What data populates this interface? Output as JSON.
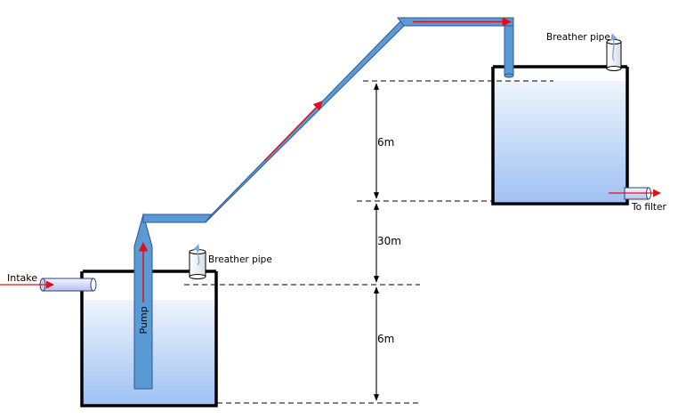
{
  "labels": {
    "intake": "Intake",
    "pump": "Pump",
    "breather_lower": "Breather pipe",
    "breather_upper": "Breather pipe",
    "to_filter": "To filter",
    "dim_upper": "6m",
    "dim_middle": "30m",
    "dim_lower": "6m"
  },
  "colors": {
    "pipe_fill": "#5b9bd5",
    "pipe_stroke": "#2f5597",
    "water_top": "#eaf1fb",
    "water_bottom": "#9fc2f3",
    "tank_wall": "#000000",
    "flow_arrow": "#e0101a",
    "breather_arrow": "#7aaad6"
  },
  "icons": {
    "flow": "red-arrow",
    "vent": "blue-arrow"
  }
}
